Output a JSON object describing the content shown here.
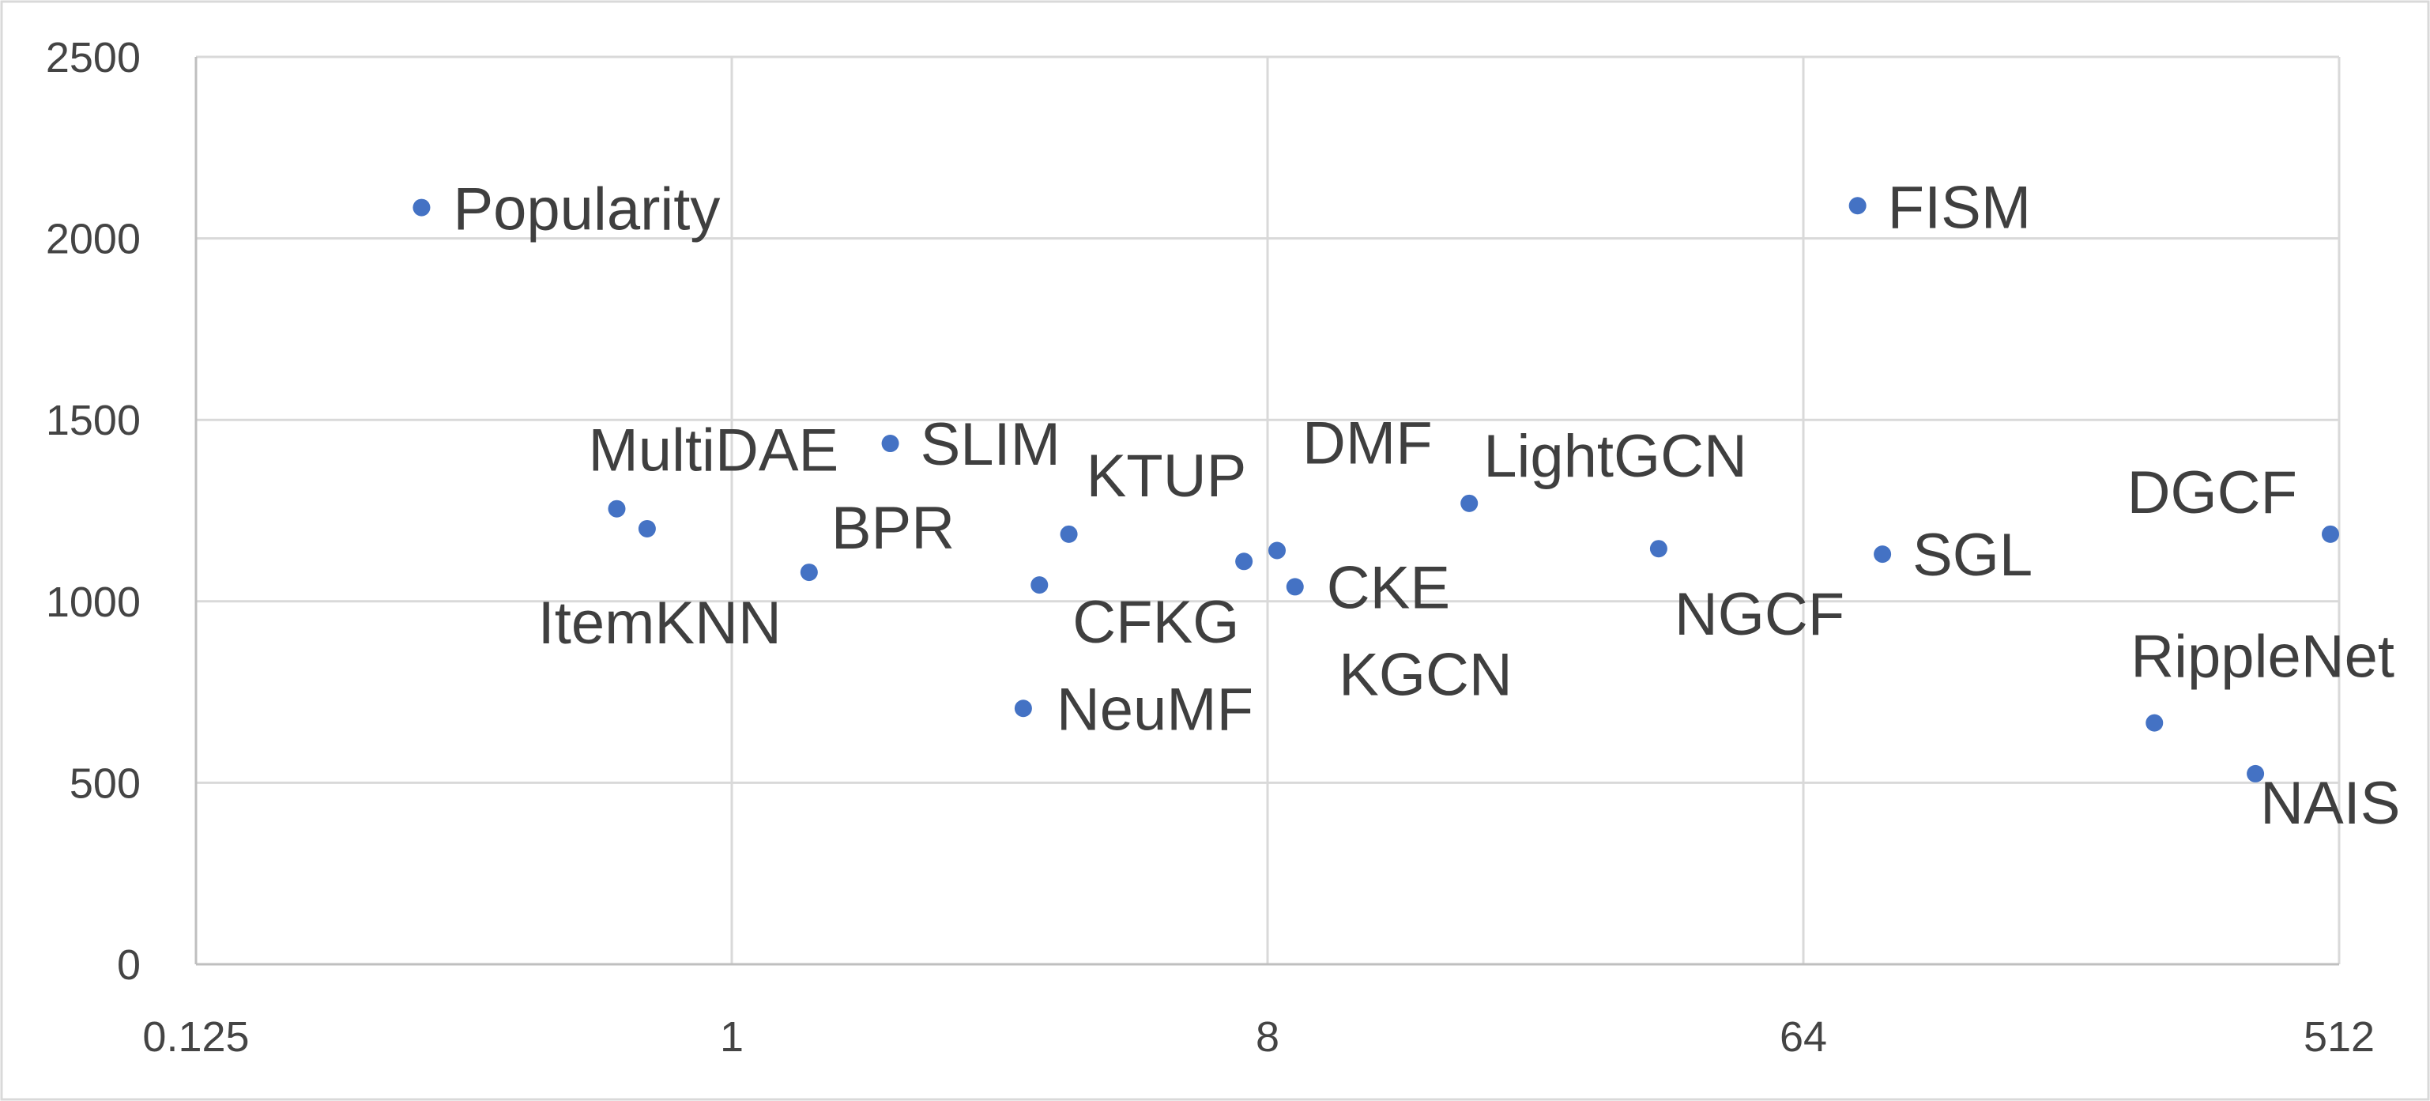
{
  "chart_data": {
    "type": "scatter",
    "title": "",
    "xlabel": "",
    "ylabel": "",
    "x_scale": "log2",
    "xlim": [
      0.125,
      512
    ],
    "ylim": [
      0,
      2500
    ],
    "x_ticks": [
      0.125,
      1,
      8,
      64,
      512
    ],
    "x_tick_labels": [
      "0.125",
      "1",
      "8",
      "64",
      "512"
    ],
    "y_ticks": [
      0,
      500,
      1000,
      1500,
      2000,
      2500
    ],
    "y_tick_labels": [
      "0",
      "500",
      "1000",
      "1500",
      "2000",
      "2500"
    ],
    "grid": true,
    "legend": "none",
    "marker_color": "#4472c4",
    "points": [
      {
        "label": "Popularity",
        "x": 0.3,
        "y": 2085
      },
      {
        "label": "MultiDAE",
        "x": 0.64,
        "y": 1255
      },
      {
        "label": "ItemKNN",
        "x": 0.72,
        "y": 1200
      },
      {
        "label": "BPR",
        "x": 1.35,
        "y": 1080
      },
      {
        "label": "SLIM",
        "x": 1.85,
        "y": 1435
      },
      {
        "label": "NeuMF",
        "x": 3.1,
        "y": 705
      },
      {
        "label": "CFKG",
        "x": 3.3,
        "y": 1045
      },
      {
        "label": "KTUP",
        "x": 3.7,
        "y": 1185
      },
      {
        "label": "DMF",
        "x": 8.3,
        "y": 1140
      },
      {
        "label": "CKE",
        "x": 8.9,
        "y": 1040
      },
      {
        "label": "KGCN",
        "x": 7.3,
        "y": 1110
      },
      {
        "label": "LightGCN",
        "x": 17.5,
        "y": 1270
      },
      {
        "label": "NGCF",
        "x": 36.5,
        "y": 1145
      },
      {
        "label": "FISM",
        "x": 79,
        "y": 2090
      },
      {
        "label": "SGL",
        "x": 87,
        "y": 1130
      },
      {
        "label": "RippleNet",
        "x": 250,
        "y": 665
      },
      {
        "label": "NAIS",
        "x": 370,
        "y": 525
      },
      {
        "label": "DGCF",
        "x": 495,
        "y": 1185
      }
    ]
  }
}
